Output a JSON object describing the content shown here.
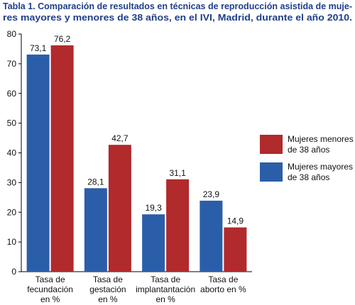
{
  "chart_data": {
    "type": "bar",
    "title": [
      "Tabla 1. Comparación de resultados en técnicas de reproducción asistida de muje-",
      "res mayores y menores de 38 años, en el IVI, Madrid, durante el año 2010."
    ],
    "categories": [
      [
        "Tasa de",
        "fecundación",
        "en %"
      ],
      [
        "Tasa de",
        "gestación",
        "en %"
      ],
      [
        "Tasa de",
        "implantantación",
        "en %"
      ],
      [
        "Tasa de",
        "aborto en %"
      ]
    ],
    "series": [
      {
        "name": [
          "Mujeres mayores",
          "de 38 años"
        ],
        "color": "#2b5ea9",
        "values": [
          73.1,
          28.1,
          19.3,
          23.9
        ],
        "value_labels": [
          "73,1",
          "28,1",
          "19,3",
          "23,9"
        ]
      },
      {
        "name": [
          "Mujeres menores",
          "de 38 años"
        ],
        "color": "#b12a2c",
        "values": [
          76.2,
          42.7,
          31.1,
          14.9
        ],
        "value_labels": [
          "76,2",
          "42,7",
          "31,1",
          "14,9"
        ]
      }
    ],
    "ylim": [
      0,
      80
    ],
    "yticks": [
      0,
      10,
      20,
      30,
      40,
      50,
      60,
      70,
      80
    ],
    "grid": false
  }
}
